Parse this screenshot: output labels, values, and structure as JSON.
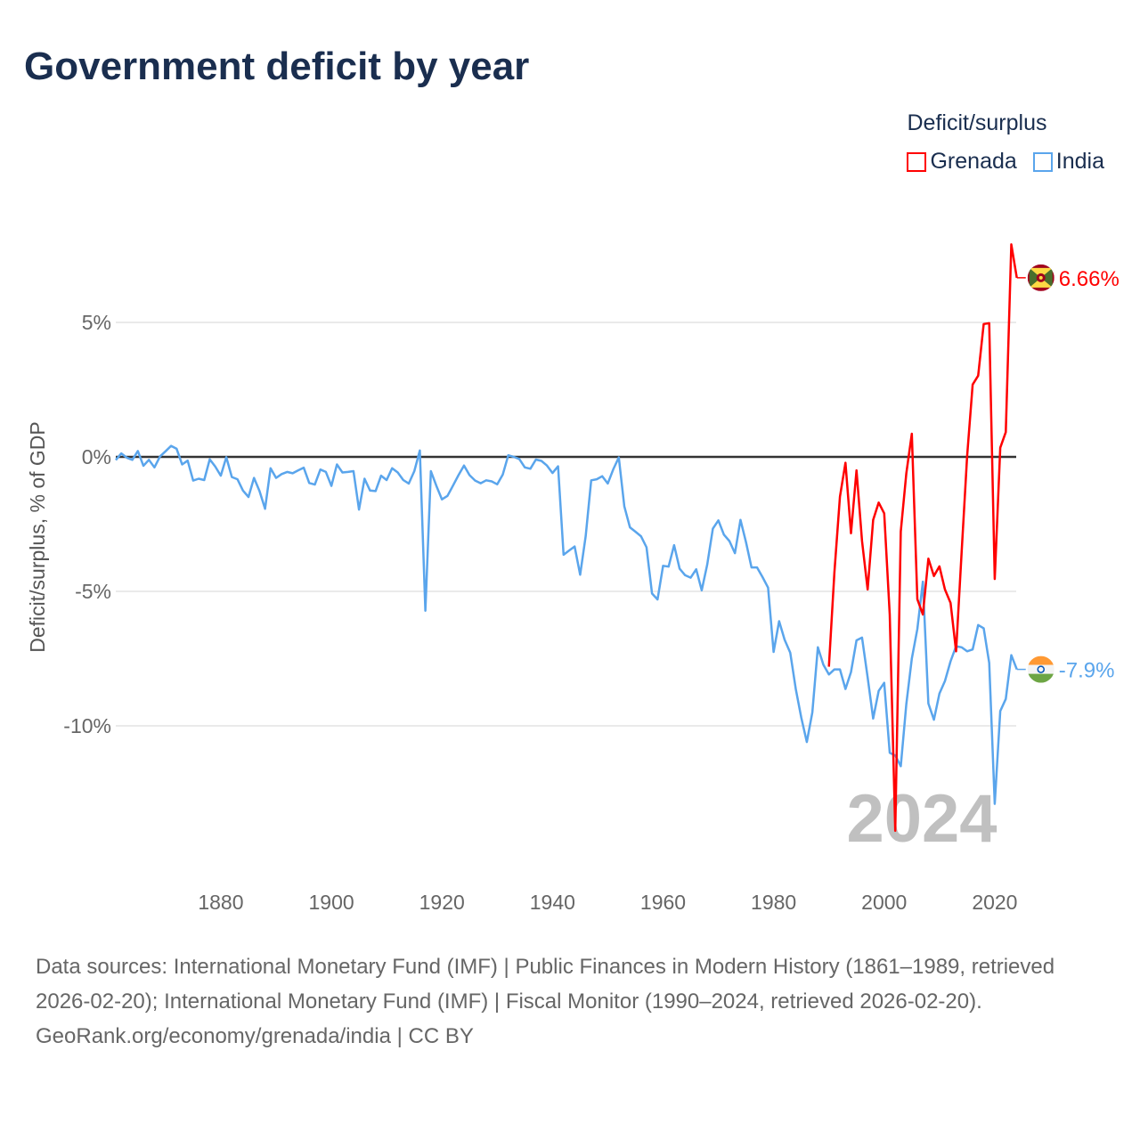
{
  "title": "Government deficit by year",
  "legend": {
    "title": "Deficit/surplus"
  },
  "chart_data": {
    "type": "line",
    "title": "Government deficit by year",
    "ylabel": "Deficit/surplus, % of GDP",
    "xlabel": "",
    "xlim": [
      1861,
      2024
    ],
    "ylim": [
      -14,
      8
    ],
    "x_ticks": [
      1880,
      1900,
      1920,
      1940,
      1960,
      1980,
      2000,
      2020
    ],
    "y_ticks": [
      5,
      0,
      -5,
      -10
    ],
    "y_tick_labels": [
      "5%",
      "0%",
      "-5%",
      "-10%"
    ],
    "grid": true,
    "legend_position": "top-right",
    "current_year_label": "2024",
    "series": [
      {
        "name": "Grenada",
        "color": "#ff0000",
        "end_label": "6.66%",
        "start_year": 1990,
        "values": [
          -7.8,
          -4.28,
          -1.48,
          -0.22,
          -2.84,
          -0.5,
          -3.13,
          -4.93,
          -2.34,
          -1.7,
          -2.1,
          -5.86,
          -13.9,
          -2.77,
          -0.62,
          0.86,
          -5.29,
          -5.86,
          -3.78,
          -4.43,
          -4.07,
          -4.93,
          -5.43,
          -7.23,
          -3.56,
          0.03,
          2.69,
          3.02,
          4.94,
          4.97,
          -4.54,
          0.34,
          0.92,
          7.9,
          6.66
        ]
      },
      {
        "name": "India",
        "color": "#5aa5ec",
        "end_label": "-7.9%",
        "start_year": 1861,
        "values": [
          -0.12,
          0.13,
          -0.03,
          -0.11,
          0.22,
          -0.33,
          -0.11,
          -0.39,
          0.02,
          0.21,
          0.41,
          0.3,
          -0.28,
          -0.14,
          -0.88,
          -0.81,
          -0.86,
          -0.09,
          -0.36,
          -0.7,
          -0.01,
          -0.75,
          -0.83,
          -1.25,
          -1.49,
          -0.78,
          -1.27,
          -1.93,
          -0.42,
          -0.78,
          -0.64,
          -0.56,
          -0.61,
          -0.5,
          -0.4,
          -0.97,
          -1.03,
          -0.47,
          -0.56,
          -1.08,
          -0.28,
          -0.58,
          -0.56,
          -0.53,
          -1.96,
          -0.81,
          -1.25,
          -1.27,
          -0.7,
          -0.86,
          -0.42,
          -0.58,
          -0.86,
          -0.99,
          -0.53,
          0.24,
          -5.72,
          -0.53,
          -1.08,
          -1.58,
          -1.45,
          -1.07,
          -0.68,
          -0.32,
          -0.68,
          -0.88,
          -0.98,
          -0.87,
          -0.91,
          -1.02,
          -0.66,
          0.06,
          0,
          -0.08,
          -0.39,
          -0.44,
          -0.1,
          -0.15,
          -0.32,
          -0.6,
          -0.35,
          -3.64,
          -3.48,
          -3.33,
          -4.38,
          -2.95,
          -0.87,
          -0.83,
          -0.72,
          -0.99,
          -0.46,
          -0.02,
          -1.84,
          -2.62,
          -2.78,
          -2.95,
          -3.36,
          -5.08,
          -5.3,
          -4.05,
          -4.08,
          -3.28,
          -4.16,
          -4.4,
          -4.49,
          -4.18,
          -4.96,
          -4.0,
          -2.67,
          -2.36,
          -2.89,
          -3.13,
          -3.58,
          -2.34,
          -3.17,
          -4.11,
          -4.11,
          -4.47,
          -4.86,
          -7.25,
          -6.11,
          -6.8,
          -7.28,
          -8.63,
          -9.7,
          -10.6,
          -9.5,
          -7.08,
          -7.73,
          -8.09,
          -7.9,
          -7.9,
          -8.63,
          -8.0,
          -6.82,
          -6.72,
          -8.2,
          -9.73,
          -8.7,
          -8.4,
          -11.0,
          -11.1,
          -11.5,
          -9.2,
          -7.5,
          -6.4,
          -4.64,
          -9.17,
          -9.77,
          -8.8,
          -8.33,
          -7.6,
          -7.04,
          -7.08,
          -7.23,
          -7.16,
          -6.25,
          -6.37,
          -7.66,
          -12.9,
          -9.45,
          -9.0,
          -7.37,
          -7.9
        ]
      }
    ]
  },
  "footer": {
    "sources": "Data sources: International Monetary Fund (IMF) | Public Finances in Modern History (1861–1989, retrieved 2026-02-20); International Monetary Fund (IMF) | Fiscal Monitor (1990–2024, retrieved 2026-02-20).",
    "credit": "GeoRank.org/economy/grenada/india | CC BY"
  }
}
